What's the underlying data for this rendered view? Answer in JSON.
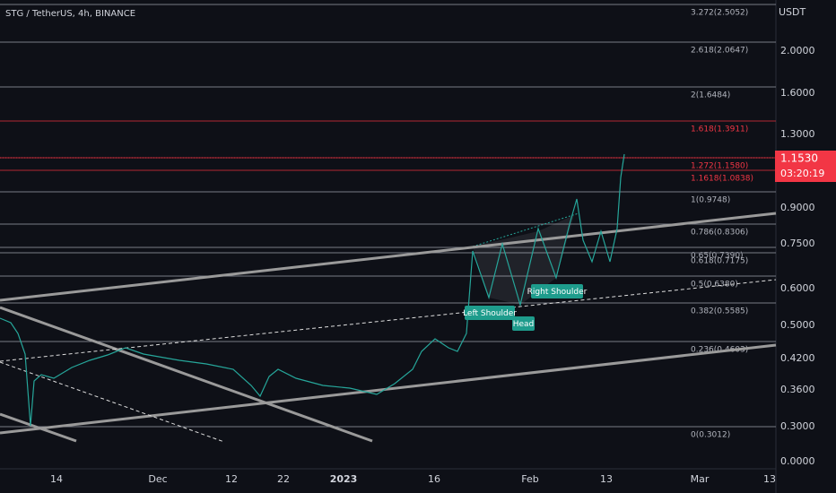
{
  "header": {
    "title": "STG / TetherUS, 4h, BINANCE"
  },
  "price_axis": {
    "currency": "USDT",
    "labels": [
      "2.0000",
      "1.6000",
      "1.3000",
      "0.9000",
      "0.7500",
      "0.6000",
      "0.5000",
      "0.4200",
      "0.3600",
      "0.3000",
      "0.0000"
    ]
  },
  "current_price": {
    "price": "1.1530",
    "countdown": "03:20:19"
  },
  "fib_levels": [
    {
      "label": "3.272(2.5052)"
    },
    {
      "label": "2.618(2.0647)"
    },
    {
      "label": "2(1.6484)"
    },
    {
      "label": "1.618(1.3911)"
    },
    {
      "label": "1.272(1.1580)"
    },
    {
      "label": "1.1618(1.0838)"
    },
    {
      "label": "1(0.9748)"
    },
    {
      "label": "0.786(0.8306)"
    },
    {
      "label": "0.65(0.7390)"
    },
    {
      "label": "0.618(0.7175)"
    },
    {
      "label": "0.5(0.6380)"
    },
    {
      "label": "0.382(0.5585)"
    },
    {
      "label": "0.236(0.4603)"
    },
    {
      "label": "0(0.3012)"
    }
  ],
  "pattern_labels": [
    "Left Shoulder",
    "Head",
    "Right Shoulder"
  ],
  "time_axis": {
    "labels": [
      "14",
      "Dec",
      "12",
      "22",
      "2023",
      "16",
      "Feb",
      "13",
      "Mar",
      "13"
    ]
  }
}
